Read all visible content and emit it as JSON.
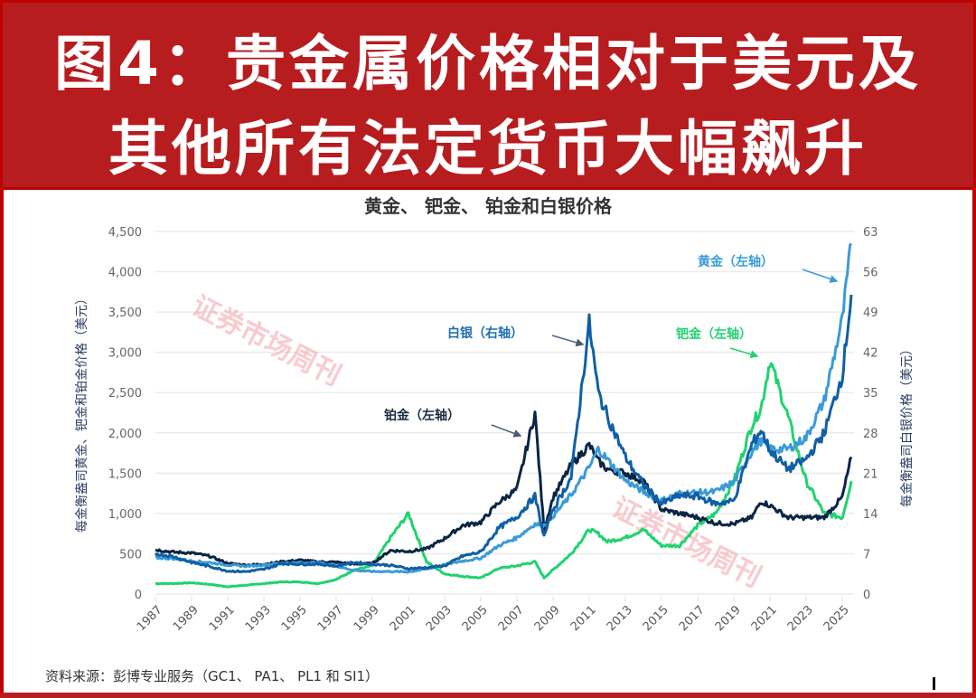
{
  "banner": {
    "line1": "图4：贵金属价格相对于美元及",
    "line2": "其他所有法定货币大幅飙升",
    "bg_color": "#b71c1f",
    "text_color": "#ffffff"
  },
  "chart": {
    "title": "黄金、 钯金、 铂金和白银价格",
    "left_axis_label": "每金衡盎司黄金、钯金和铂金价格（美元）",
    "right_axis_label": "每金衡盎司白银价格（美元）",
    "annotations": {
      "gold": "黄金（左轴）",
      "silver": "白银（右轴）",
      "platinum": "铂金（左轴）",
      "palladium": "钯金（左轴）"
    },
    "watermark": "证券市场周刊",
    "source": "资料来源：彭博专业服务（GC1、 PA1、 PL1 和 SI1）"
  },
  "colors": {
    "gold": "#3a9bd8",
    "silver": "#0f5fa6",
    "platinum": "#0b2545",
    "palladium": "#1fd36e",
    "grid": "#ececec",
    "watermark": "#f0a0a8"
  },
  "chart_data": {
    "type": "line",
    "title": "黄金、 钯金、 铂金和白银价格",
    "xlabel": "",
    "ylabel": "每金衡盎司黄金、钯金和铂金价格（美元）",
    "y2label": "每金衡盎司白银价格（美元）",
    "x_ticks": [
      "1987",
      "1989",
      "1991",
      "1993",
      "1995",
      "1997",
      "1999",
      "2001",
      "2003",
      "2005",
      "2007",
      "2009",
      "2011",
      "2013",
      "2015",
      "2017",
      "2019",
      "2021",
      "2023",
      "2025"
    ],
    "y_ticks": [
      0,
      500,
      1000,
      1500,
      2000,
      2500,
      3000,
      3500,
      4000,
      4500
    ],
    "y_tick_labels": [
      "0",
      "500",
      "1,000",
      "1,500",
      "2,000",
      "2,500",
      "3,000",
      "3,500",
      "4,000",
      "4,500"
    ],
    "y2_ticks": [
      0,
      7,
      14,
      21,
      28,
      35,
      42,
      49,
      56,
      63
    ],
    "ylim": [
      0,
      4500
    ],
    "y2lim": [
      0,
      63
    ],
    "grid": true,
    "legend_position": "inline annotations",
    "x": [
      1987,
      1988,
      1989,
      1990,
      1991,
      1992,
      1993,
      1994,
      1995,
      1996,
      1997,
      1998,
      1999,
      2000,
      2001,
      2002,
      2003,
      2004,
      2005,
      2006,
      2007,
      2008,
      2008.5,
      2009,
      2010,
      2011,
      2011.5,
      2012,
      2013,
      2014,
      2015,
      2016,
      2017,
      2018,
      2019,
      2020,
      2020.5,
      2021,
      2022,
      2023,
      2024,
      2025,
      2025.5
    ],
    "series": [
      {
        "name": "黄金（左轴）",
        "axis": "left",
        "values": [
          450,
          440,
          410,
          390,
          360,
          345,
          360,
          385,
          385,
          390,
          345,
          295,
          280,
          280,
          275,
          310,
          365,
          410,
          445,
          600,
          700,
          870,
          850,
          970,
          1230,
          1570,
          1800,
          1670,
          1410,
          1270,
          1160,
          1250,
          1260,
          1270,
          1390,
          1770,
          1900,
          1800,
          1800,
          1940,
          2400,
          3400,
          4350
        ]
      },
      {
        "name": "白银（右轴）",
        "axis": "right",
        "values": [
          7.0,
          6.5,
          5.5,
          4.8,
          4.0,
          3.9,
          4.3,
          5.3,
          5.2,
          5.2,
          4.9,
          5.5,
          5.2,
          5.0,
          4.4,
          4.6,
          4.9,
          6.6,
          7.3,
          11.5,
          13.4,
          17.0,
          10.0,
          14.7,
          20.2,
          47.0,
          35.0,
          31.0,
          23.8,
          19.0,
          15.7,
          17.1,
          17.0,
          15.7,
          16.2,
          26.0,
          28.5,
          25.0,
          21.7,
          23.4,
          28.0,
          38.0,
          52.0
        ]
      },
      {
        "name": "铂金（左轴）",
        "axis": "left",
        "values": [
          550,
          520,
          510,
          470,
          380,
          360,
          370,
          400,
          420,
          400,
          395,
          370,
          380,
          540,
          530,
          560,
          690,
          850,
          890,
          1140,
          1300,
          2250,
          800,
          1200,
          1600,
          1850,
          1650,
          1550,
          1500,
          1400,
          1050,
          1000,
          950,
          880,
          870,
          950,
          1150,
          1100,
          950,
          950,
          950,
          1200,
          1700
        ]
      },
      {
        "name": "钯金（左轴）",
        "axis": "left",
        "values": [
          130,
          130,
          140,
          120,
          90,
          110,
          130,
          150,
          150,
          130,
          180,
          300,
          350,
          700,
          1000,
          400,
          250,
          220,
          200,
          320,
          350,
          400,
          200,
          300,
          500,
          800,
          750,
          650,
          700,
          800,
          600,
          600,
          850,
          1000,
          1400,
          2100,
          2300,
          2900,
          2200,
          1400,
          1000,
          950,
          1400
        ]
      }
    ]
  }
}
